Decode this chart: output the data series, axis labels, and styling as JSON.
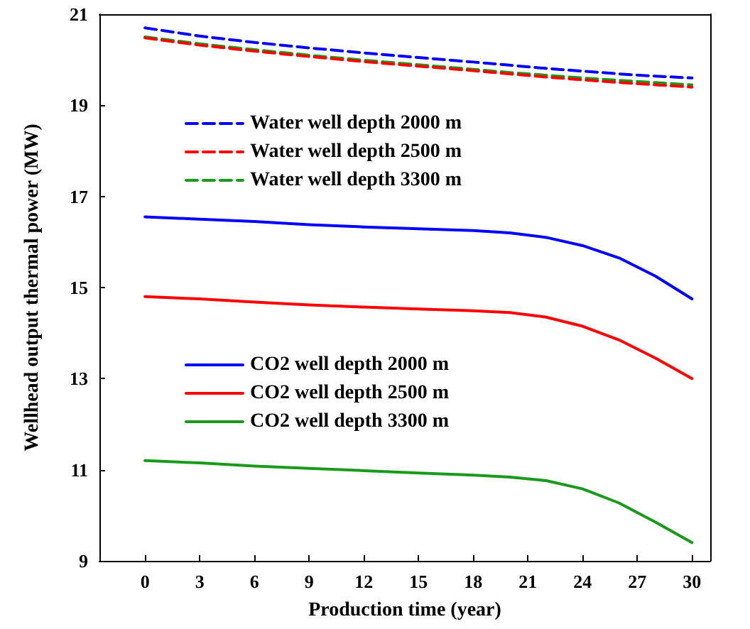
{
  "chart_data": {
    "type": "line",
    "xlabel": "Production time (year)",
    "ylabel": "Wellhead output thermal power (MW)",
    "x": [
      0,
      3,
      6,
      9,
      12,
      15,
      18,
      20,
      22,
      24,
      26,
      28,
      30
    ],
    "series": [
      {
        "name": "Water well depth 3300 m",
        "color": "#1a9a1a",
        "line_style": "dashed",
        "values": [
          20.5,
          20.35,
          20.22,
          20.1,
          19.99,
          19.89,
          19.79,
          19.72,
          19.66,
          19.6,
          19.55,
          19.5,
          19.45
        ]
      },
      {
        "name": "Water well depth 2500 m",
        "color": "#ff0000",
        "line_style": "dashed",
        "values": [
          20.48,
          20.32,
          20.19,
          20.07,
          19.96,
          19.86,
          19.76,
          19.69,
          19.62,
          19.56,
          19.5,
          19.45,
          19.4
        ]
      },
      {
        "name": "Water well depth 2000 m",
        "color": "#0000ff",
        "line_style": "dashed",
        "values": [
          20.7,
          20.52,
          20.38,
          20.26,
          20.15,
          20.05,
          19.95,
          19.88,
          19.81,
          19.75,
          19.69,
          19.64,
          19.6
        ]
      },
      {
        "name": "CO2 well depth 3300 m",
        "color": "#1a9a1a",
        "line_style": "solid",
        "values": [
          11.2,
          11.15,
          11.08,
          11.03,
          10.98,
          10.93,
          10.88,
          10.84,
          10.76,
          10.58,
          10.27,
          9.85,
          9.4
        ]
      },
      {
        "name": "CO2 well depth 2500 m",
        "color": "#ff0000",
        "line_style": "solid",
        "values": [
          14.8,
          14.75,
          14.68,
          14.62,
          14.57,
          14.53,
          14.49,
          14.45,
          14.35,
          14.15,
          13.85,
          13.45,
          13.0
        ]
      },
      {
        "name": "CO2 well depth 2000 m",
        "color": "#0000ff",
        "line_style": "solid",
        "values": [
          16.55,
          16.5,
          16.45,
          16.38,
          16.33,
          16.29,
          16.25,
          16.2,
          16.1,
          15.92,
          15.65,
          15.25,
          14.75
        ]
      }
    ],
    "xlim": [
      -2.5,
      31
    ],
    "xticks": [
      0,
      3,
      6,
      9,
      12,
      15,
      18,
      21,
      24,
      27,
      30
    ],
    "ylim": [
      9,
      21
    ],
    "yticks": [
      9,
      11,
      13,
      15,
      17,
      19,
      21
    ],
    "grid": false,
    "legend": "left",
    "marker": "none"
  }
}
